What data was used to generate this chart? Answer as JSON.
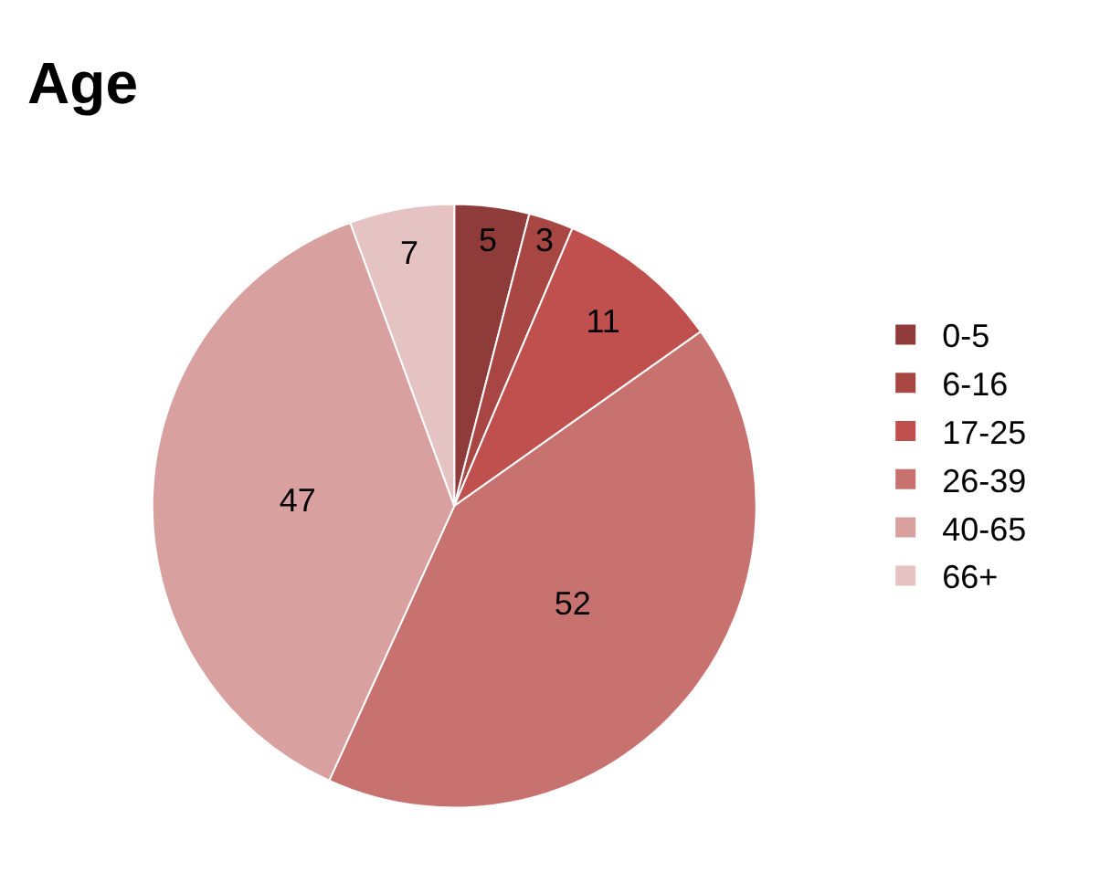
{
  "chart_data": {
    "type": "pie",
    "title": "Age",
    "categories": [
      "0-5",
      "6-16",
      "17-25",
      "26-39",
      "40-65",
      "66+"
    ],
    "values": [
      5,
      3,
      11,
      52,
      47,
      7
    ],
    "colors": [
      "#8e3b3a",
      "#a84644",
      "#c0504d",
      "#c87270",
      "#d8a09f",
      "#e5c3c3"
    ],
    "data_labels": true,
    "legend": "right"
  }
}
